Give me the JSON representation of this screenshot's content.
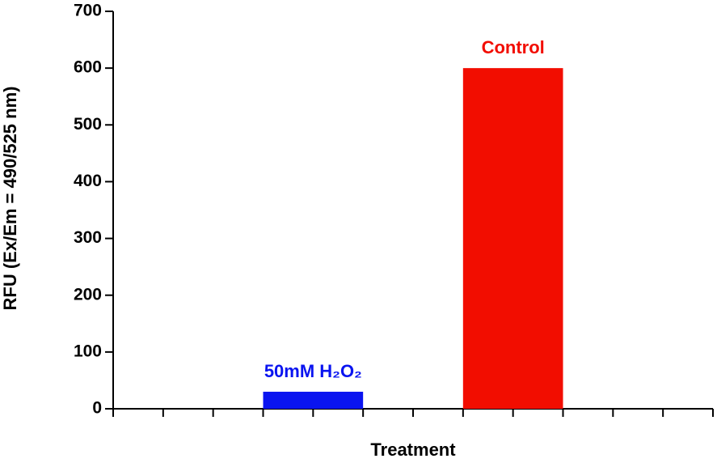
{
  "chart_data": {
    "type": "bar",
    "xlabel": "Treatment",
    "ylabel": "RFU (Ex/Em = 490/525 nm)",
    "categories": [
      "50mM H₂O₂",
      "Control"
    ],
    "values": [
      30,
      600
    ],
    "colors": [
      "#0a14f0",
      "#f20d00"
    ],
    "ylim": [
      0,
      700
    ],
    "yticks": [
      0,
      100,
      200,
      300,
      400,
      500,
      600,
      700
    ]
  }
}
